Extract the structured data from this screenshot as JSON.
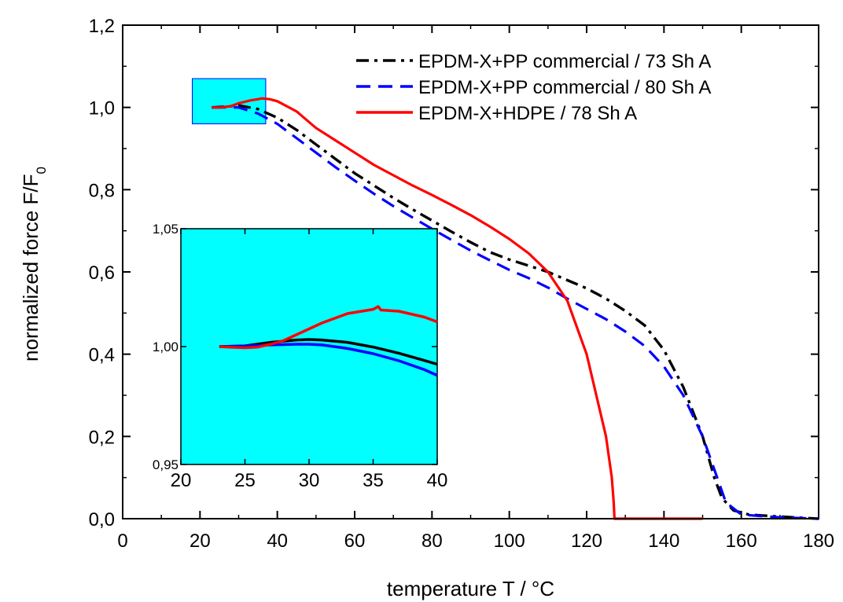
{
  "chart_data": [
    {
      "type": "line",
      "xlabel": "temperature T / °C",
      "ylabel": "normalized force F/F",
      "ylabel_subscript": "0",
      "xlim": [
        0,
        180
      ],
      "ylim": [
        0,
        1.2
      ],
      "xticks": [
        "0",
        "20",
        "40",
        "60",
        "80",
        "100",
        "120",
        "140",
        "160",
        "180"
      ],
      "yticks": [
        "0,0",
        "0,2",
        "0,4",
        "0,6",
        "0,8",
        "1,0",
        "1,2"
      ],
      "legend_position": "top-right",
      "zoom_box": {
        "x": [
          18,
          37
        ],
        "y": [
          0.96,
          1.07
        ],
        "color": "#00ffff"
      },
      "series": [
        {
          "name": "EPDM-X+PP commercial / 73 Sh A",
          "color": "#000000",
          "dash": "dash-dot",
          "points": [
            [
              23,
              1.0
            ],
            [
              27,
              1.002
            ],
            [
              30,
              1.005
            ],
            [
              35,
              0.996
            ],
            [
              40,
              0.975
            ],
            [
              45,
              0.945
            ],
            [
              50,
              0.91
            ],
            [
              55,
              0.875
            ],
            [
              60,
              0.84
            ],
            [
              65,
              0.81
            ],
            [
              70,
              0.78
            ],
            [
              75,
              0.752
            ],
            [
              80,
              0.725
            ],
            [
              85,
              0.698
            ],
            [
              90,
              0.672
            ],
            [
              95,
              0.648
            ],
            [
              100,
              0.63
            ],
            [
              105,
              0.615
            ],
            [
              110,
              0.6
            ],
            [
              115,
              0.58
            ],
            [
              120,
              0.56
            ],
            [
              125,
              0.535
            ],
            [
              130,
              0.505
            ],
            [
              135,
              0.47
            ],
            [
              140,
              0.41
            ],
            [
              145,
              0.32
            ],
            [
              150,
              0.2
            ],
            [
              153,
              0.1
            ],
            [
              155,
              0.05
            ],
            [
              158,
              0.02
            ],
            [
              162,
              0.01
            ],
            [
              170,
              0.005
            ],
            [
              180,
              0.0
            ]
          ]
        },
        {
          "name": "EPDM-X+PP commercial / 80 Sh A",
          "color": "#0000ff",
          "dash": "dash",
          "points": [
            [
              23,
              1.0
            ],
            [
              27,
              1.0
            ],
            [
              30,
              1.0
            ],
            [
              35,
              0.985
            ],
            [
              40,
              0.96
            ],
            [
              45,
              0.925
            ],
            [
              50,
              0.89
            ],
            [
              55,
              0.855
            ],
            [
              60,
              0.822
            ],
            [
              65,
              0.79
            ],
            [
              70,
              0.76
            ],
            [
              75,
              0.732
            ],
            [
              80,
              0.705
            ],
            [
              85,
              0.678
            ],
            [
              90,
              0.652
            ],
            [
              95,
              0.628
            ],
            [
              100,
              0.605
            ],
            [
              105,
              0.585
            ],
            [
              110,
              0.562
            ],
            [
              115,
              0.535
            ],
            [
              120,
              0.51
            ],
            [
              125,
              0.485
            ],
            [
              130,
              0.455
            ],
            [
              135,
              0.42
            ],
            [
              140,
              0.37
            ],
            [
              145,
              0.3
            ],
            [
              150,
              0.2
            ],
            [
              153,
              0.12
            ],
            [
              156,
              0.04
            ],
            [
              160,
              0.01
            ],
            [
              170,
              0.003
            ],
            [
              180,
              0.0
            ]
          ]
        },
        {
          "name": "EPDM-X+HDPE / 78 Sh A",
          "color": "#ff0000",
          "dash": "solid",
          "points": [
            [
              23,
              1.0
            ],
            [
              25,
              0.9995
            ],
            [
              28,
              1.003
            ],
            [
              30,
              1.01
            ],
            [
              33,
              1.017
            ],
            [
              35,
              1.02
            ],
            [
              36,
              1.022
            ],
            [
              38,
              1.02
            ],
            [
              40,
              1.015
            ],
            [
              45,
              0.99
            ],
            [
              50,
              0.95
            ],
            [
              55,
              0.92
            ],
            [
              60,
              0.89
            ],
            [
              65,
              0.86
            ],
            [
              70,
              0.835
            ],
            [
              75,
              0.81
            ],
            [
              80,
              0.787
            ],
            [
              85,
              0.763
            ],
            [
              90,
              0.738
            ],
            [
              95,
              0.71
            ],
            [
              100,
              0.68
            ],
            [
              105,
              0.645
            ],
            [
              110,
              0.6
            ],
            [
              115,
              0.53
            ],
            [
              120,
              0.4
            ],
            [
              125,
              0.2
            ],
            [
              126.5,
              0.1
            ],
            [
              127,
              0.04
            ],
            [
              127.2,
              0.0
            ],
            [
              150,
              0.0
            ]
          ]
        }
      ]
    },
    {
      "type": "line",
      "xlim": [
        20,
        40
      ],
      "ylim": [
        0.95,
        1.05
      ],
      "xticks": [
        "20",
        "25",
        "30",
        "35",
        "40"
      ],
      "yticks": [
        "0,95",
        "1,00",
        "1,05"
      ],
      "background": "#00ffff",
      "series": [
        {
          "color": "#000000",
          "points": [
            [
              23,
              1.0
            ],
            [
              25,
              1.0003
            ],
            [
              27,
              1.0018
            ],
            [
              29,
              1.0028
            ],
            [
              30,
              1.003
            ],
            [
              31,
              1.0028
            ],
            [
              33,
              1.0018
            ],
            [
              35,
              0.9998
            ],
            [
              37,
              0.9972
            ],
            [
              39,
              0.9941
            ],
            [
              40,
              0.9925
            ]
          ]
        },
        {
          "color": "#0000ff",
          "points": [
            [
              23,
              1.0
            ],
            [
              25,
              1.0002
            ],
            [
              27,
              1.0007
            ],
            [
              29,
              1.001
            ],
            [
              30,
              1.001
            ],
            [
              31,
              1.0007
            ],
            [
              33,
              0.9992
            ],
            [
              35,
              0.997
            ],
            [
              37,
              0.994
            ],
            [
              39,
              0.9902
            ],
            [
              40,
              0.9878
            ]
          ]
        },
        {
          "color": "#ff0000",
          "points": [
            [
              23,
              1.0
            ],
            [
              24,
              0.9997
            ],
            [
              25,
              0.9995
            ],
            [
              26,
              0.9998
            ],
            [
              27,
              1.001
            ],
            [
              28,
              1.0025
            ],
            [
              29,
              1.005
            ],
            [
              31,
              1.01
            ],
            [
              33,
              1.014
            ],
            [
              35,
              1.0158
            ],
            [
              35.4,
              1.017
            ],
            [
              35.6,
              1.0155
            ],
            [
              37,
              1.015
            ],
            [
              39,
              1.0125
            ],
            [
              40,
              1.0105
            ]
          ]
        }
      ]
    }
  ]
}
